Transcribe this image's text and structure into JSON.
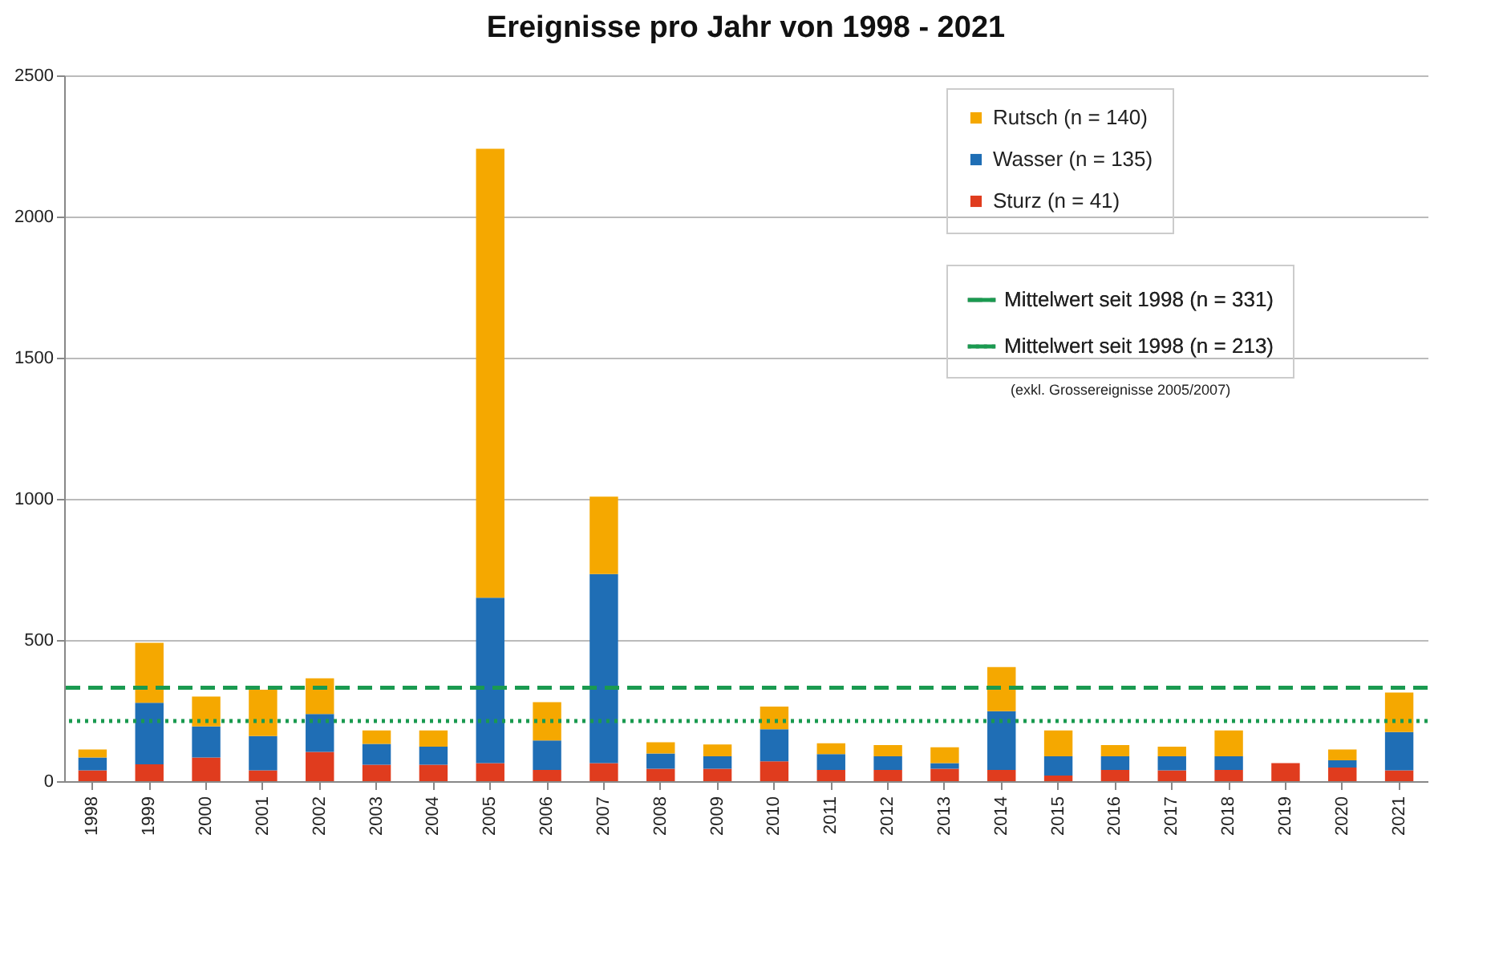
{
  "chart_data": {
    "type": "bar",
    "title": "Ereignisse pro Jahr von 1998 - 2021",
    "stacked": true,
    "categories": [
      "1998",
      "1999",
      "2000",
      "2001",
      "2002",
      "2003",
      "2004",
      "2005",
      "2006",
      "2007",
      "2008",
      "2009",
      "2010",
      "2011",
      "2012",
      "2013",
      "2014",
      "2015",
      "2016",
      "2017",
      "2018",
      "2019",
      "2020",
      "2021"
    ],
    "series": [
      {
        "name": "Sturz (n = 41)",
        "color": "#e03c1e",
        "values": [
          38,
          60,
          84,
          38,
          104,
          58,
          58,
          64,
          40,
          64,
          44,
          44,
          70,
          40,
          40,
          44,
          40,
          20,
          40,
          38,
          40,
          64,
          48,
          38
        ]
      },
      {
        "name": "Wasser (n = 135)",
        "color": "#1f6eb5",
        "values": [
          46,
          218,
          110,
          122,
          134,
          74,
          64,
          586,
          104,
          670,
          54,
          44,
          114,
          56,
          48,
          20,
          208,
          68,
          48,
          50,
          48,
          0,
          26,
          136
        ]
      },
      {
        "name": "Rutsch (n = 140)",
        "color": "#f5a800",
        "values": [
          28,
          212,
          106,
          164,
          126,
          48,
          58,
          1590,
          136,
          274,
          40,
          42,
          80,
          38,
          40,
          56,
          156,
          92,
          40,
          34,
          92,
          0,
          38,
          140
        ]
      }
    ],
    "ylim": [
      0,
      2500
    ],
    "yticks": [
      0,
      500,
      1000,
      1500,
      2000,
      2500
    ],
    "grid": "y",
    "legend": "top right",
    "ref_lines": [
      {
        "axis": "y",
        "value": 331,
        "label": "Mittelwert seit 1998 (n = 331)",
        "color": "#1a9a50",
        "line_style": "dashed"
      },
      {
        "axis": "y",
        "value": 213,
        "label": "Mittelwert seit 1998 (n = 213)",
        "color": "#1a9a50",
        "line_style": "dotted"
      }
    ],
    "annotations": [
      "(exkl. Grossereignisse 2005/2007)"
    ]
  }
}
